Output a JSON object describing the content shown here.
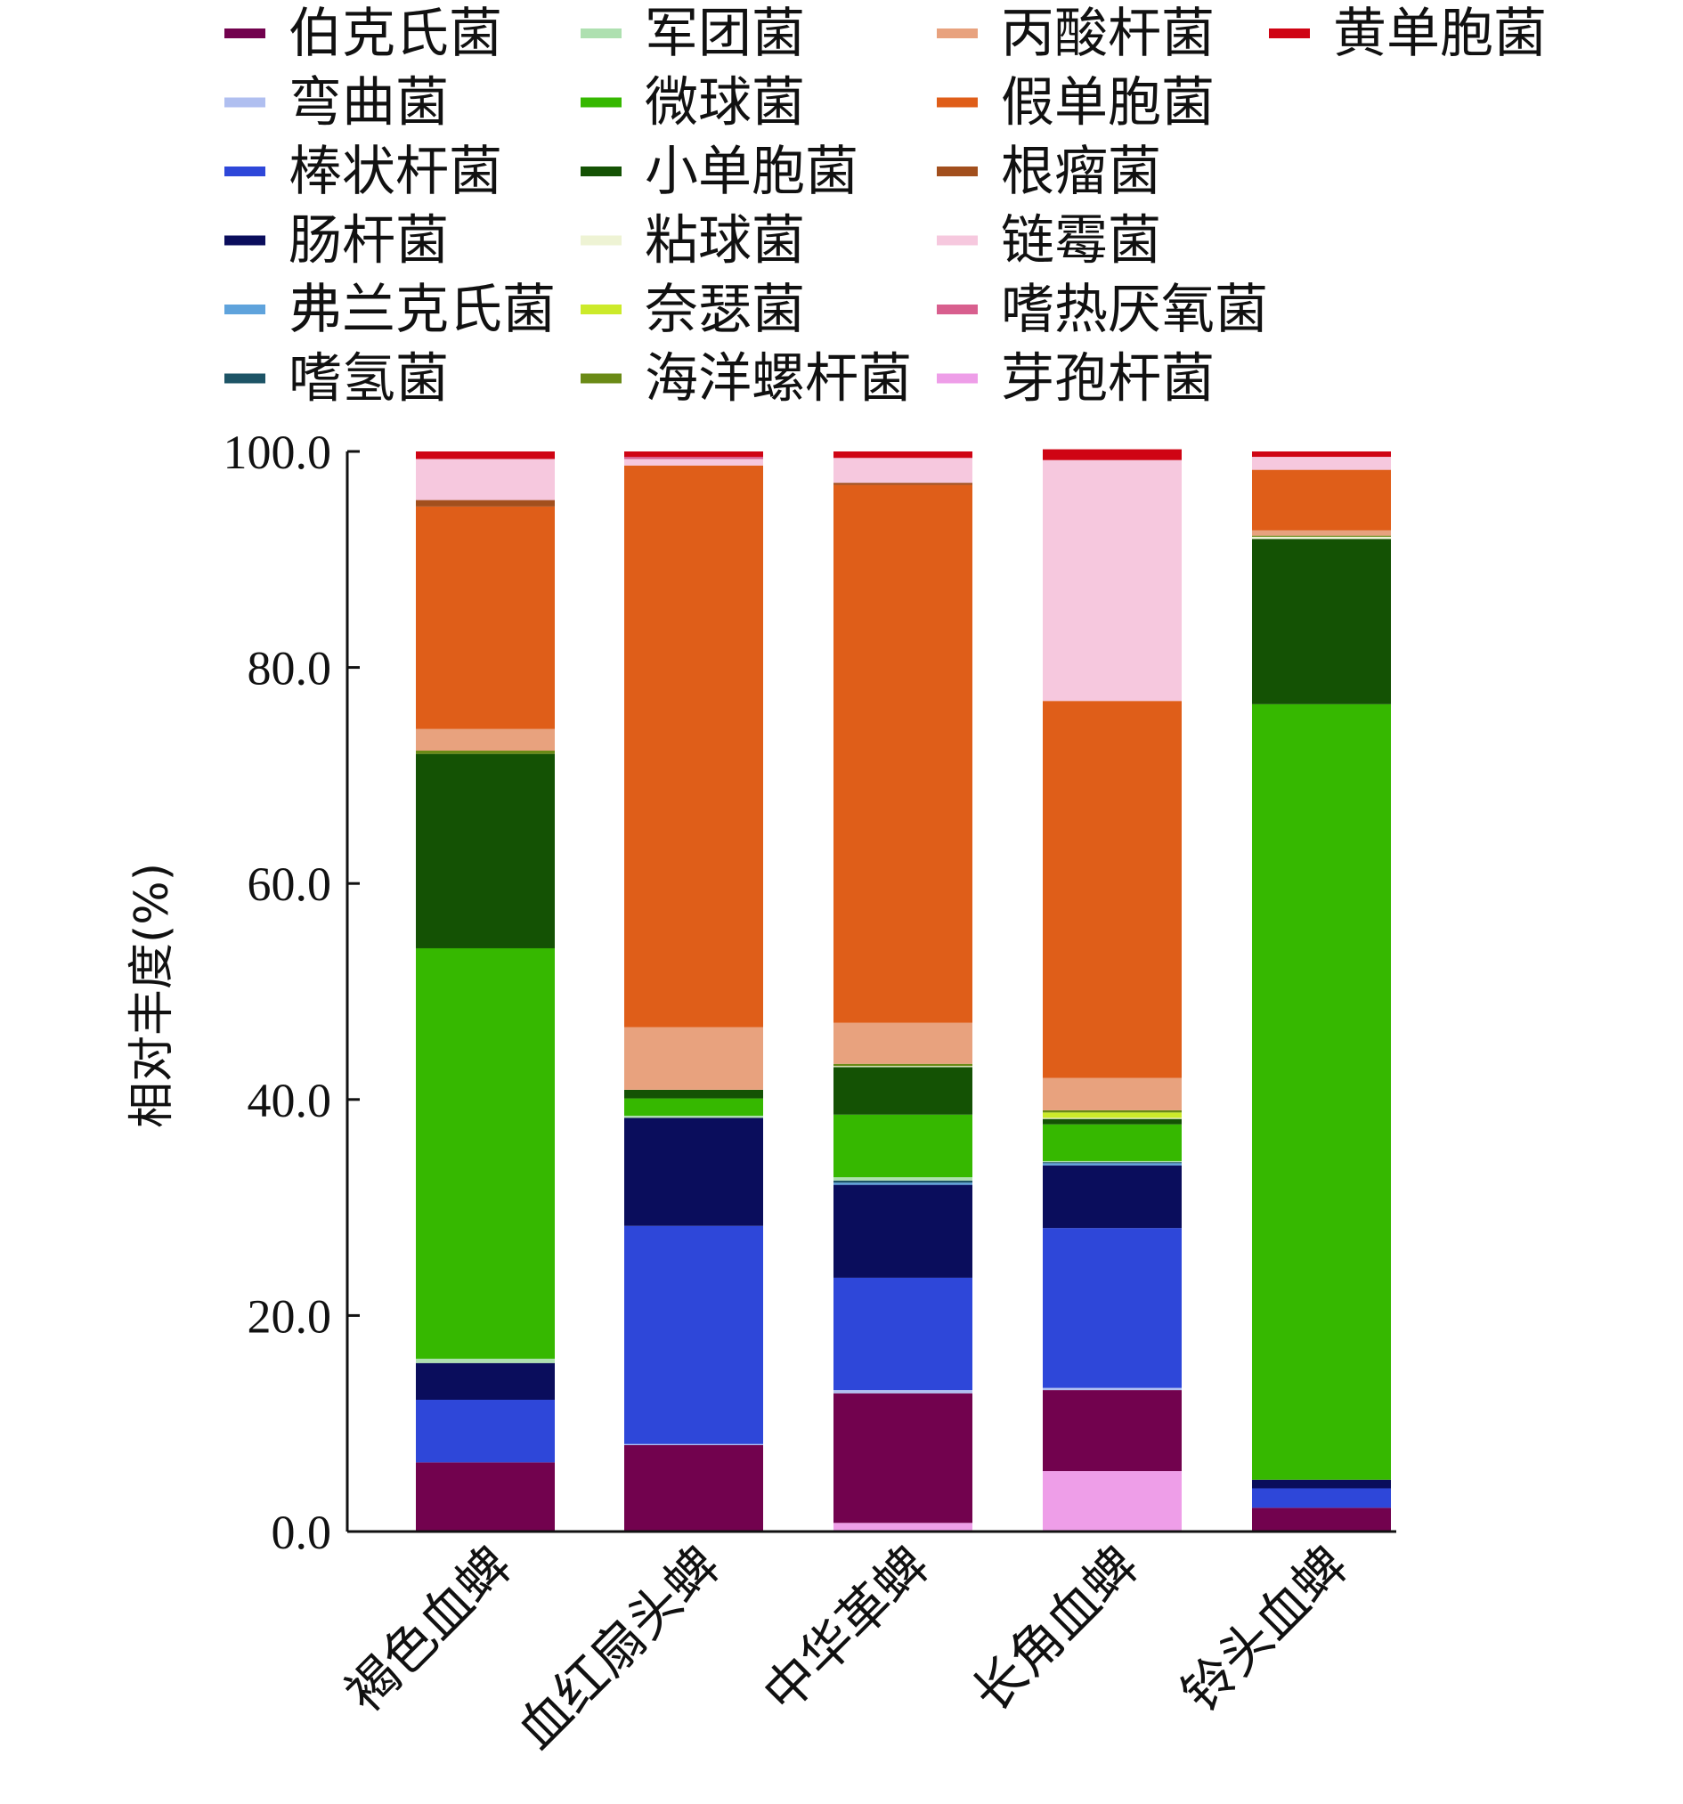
{
  "chart_data": {
    "type": "bar",
    "stacked": true,
    "title": "",
    "xlabel": "",
    "ylabel": "相对丰度(%)",
    "ylim": [
      0,
      100
    ],
    "yticks": [
      "0.0",
      "20.0",
      "40.0",
      "60.0",
      "80.0",
      "100.0"
    ],
    "grid": false,
    "legend_position": "top",
    "categories": [
      "褐色血蜱",
      "血红扇头蜱",
      "中华革蜱",
      "长角血蜱",
      "铃头血蜱"
    ],
    "series": [
      {
        "name": "芽孢杆菌",
        "color": "#ee9ee8",
        "values": [
          0,
          0,
          0.8,
          5.6,
          0
        ]
      },
      {
        "name": "伯克氏菌",
        "color": "#72024e",
        "values": [
          6.4,
          8.0,
          12.0,
          7.5,
          2.2
        ]
      },
      {
        "name": "弯曲菌",
        "color": "#b0bff0",
        "values": [
          0,
          0.1,
          0.3,
          0.2,
          0
        ]
      },
      {
        "name": "棒状杆菌",
        "color": "#2e47d9",
        "values": [
          5.8,
          20.2,
          10.4,
          14.8,
          1.8
        ]
      },
      {
        "name": "肠杆菌",
        "color": "#0a0d5c",
        "values": [
          3.4,
          10.0,
          8.6,
          5.8,
          0.8
        ]
      },
      {
        "name": "弗兰克氏菌",
        "color": "#5fa3dc",
        "values": [
          0,
          0,
          0.2,
          0.2,
          0
        ]
      },
      {
        "name": "嗜氢菌",
        "color": "#1d5466",
        "values": [
          0,
          0,
          0.2,
          0.1,
          0
        ]
      },
      {
        "name": "军团菌",
        "color": "#aee0b0",
        "values": [
          0.4,
          0.2,
          0.3,
          0.1,
          0
        ]
      },
      {
        "name": "微球菌",
        "color": "#36b800",
        "values": [
          38.0,
          1.6,
          5.8,
          3.4,
          71.8
        ]
      },
      {
        "name": "小单胞菌",
        "color": "#145204",
        "values": [
          18.0,
          0.8,
          4.4,
          0.5,
          15.3
        ]
      },
      {
        "name": "粘球菌",
        "color": "#eef3d4",
        "values": [
          0,
          0,
          0.1,
          0.1,
          0.2
        ]
      },
      {
        "name": "奈瑟菌",
        "color": "#ccea2a",
        "values": [
          0,
          0,
          0,
          0.5,
          0
        ]
      },
      {
        "name": "海洋螺杆菌",
        "color": "#6a8a16",
        "values": [
          0.3,
          0,
          0.2,
          0.2,
          0.1
        ]
      },
      {
        "name": "丙酸杆菌",
        "color": "#e8a27e",
        "values": [
          2.0,
          5.8,
          3.8,
          3.0,
          0.5
        ]
      },
      {
        "name": "假单胞菌",
        "color": "#df5e19",
        "values": [
          20.6,
          52.0,
          49.8,
          34.9,
          5.6
        ]
      },
      {
        "name": "根瘤菌",
        "color": "#a24f1d",
        "values": [
          0.6,
          0,
          0.2,
          0,
          0
        ]
      },
      {
        "name": "链霉菌",
        "color": "#f6c8de",
        "values": [
          3.8,
          0.6,
          2.3,
          22.3,
          1.2
        ]
      },
      {
        "name": "嗜热厌氧菌",
        "color": "#d85f8e",
        "values": [
          0,
          0.2,
          0,
          0,
          0
        ]
      },
      {
        "name": "黄单胞菌",
        "color": "#cf0414",
        "values": [
          0.7,
          0.5,
          0.6,
          1.0,
          0.5
        ]
      }
    ]
  },
  "legend": {
    "columns": [
      [
        "伯克氏菌",
        "弯曲菌",
        "棒状杆菌",
        "肠杆菌",
        "弗兰克氏菌",
        "嗜氢菌"
      ],
      [
        "军团菌",
        "微球菌",
        "小单胞菌",
        "粘球菌",
        "奈瑟菌",
        "海洋螺杆菌"
      ],
      [
        "丙酸杆菌",
        "假单胞菌",
        "根瘤菌",
        "链霉菌",
        "嗜热厌氧菌",
        "芽孢杆菌"
      ],
      [
        "黄单胞菌"
      ]
    ]
  }
}
